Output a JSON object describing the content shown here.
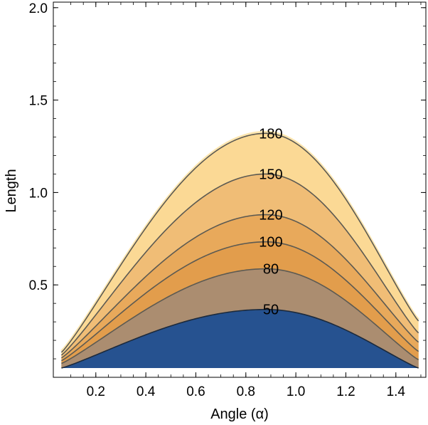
{
  "chart_data": {
    "type": "contour",
    "xlabel": "Angle (α)",
    "ylabel": "Length",
    "xlim": [
      0.03,
      1.52
    ],
    "ylim": [
      0.0,
      2.03
    ],
    "x_ticks": [
      0.2,
      0.4,
      0.6,
      0.8,
      1.0,
      1.2,
      1.4
    ],
    "x_tick_labels": [
      "0.2",
      "0.4",
      "0.6",
      "0.8",
      "1.0",
      "1.2",
      "1.4"
    ],
    "y_ticks": [
      0.5,
      1.0,
      1.5,
      2.0
    ],
    "y_tick_labels": [
      "0.5",
      "1.0",
      "1.5",
      "2.0"
    ],
    "domain_x": [
      0.0625,
      1.4905
    ],
    "domain_y_min": 0.05,
    "peak_x": 0.88,
    "colors": {
      "frame": "#000000",
      "contour_line": "#5c5a52",
      "bottom_region": "#265290",
      "band_50_80": "#ab8d70",
      "band_80_100": "#e29d4c",
      "band_100_120": "#e8a95b",
      "band_120_150": "#f0bd76",
      "band_150_180": "#fbd995",
      "top_fill": "#fde6b0"
    },
    "contours": [
      {
        "level": 50,
        "label": "50",
        "peak": 0.367,
        "at_left": 0.05,
        "at_right": 0.05,
        "label_x": 0.9
      },
      {
        "level": 80,
        "label": "80",
        "peak": 0.587,
        "at_left": 0.075,
        "at_right": 0.095,
        "label_x": 0.9
      },
      {
        "level": 100,
        "label": "100",
        "peak": 0.733,
        "at_left": 0.09,
        "at_right": 0.14,
        "label_x": 0.9
      },
      {
        "level": 120,
        "label": "120",
        "peak": 0.88,
        "at_left": 0.105,
        "at_right": 0.19,
        "label_x": 0.9
      },
      {
        "level": 150,
        "label": "150",
        "peak": 1.1,
        "at_left": 0.12,
        "at_right": 0.24,
        "label_x": 0.9
      },
      {
        "level": 180,
        "label": "180",
        "peak": 1.32,
        "at_left": 0.135,
        "at_right": 0.305,
        "label_x": 0.9
      }
    ]
  }
}
